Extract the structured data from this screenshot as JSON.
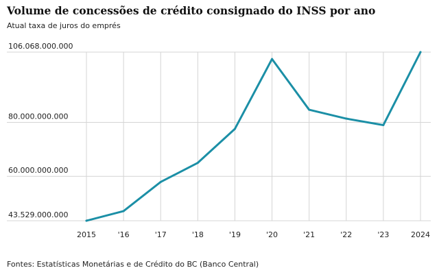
{
  "header": {
    "title": "Volume de concessões de crédito consignado do INSS por ano",
    "subtitle": "Atual taxa de juros do emprés"
  },
  "footer": {
    "source": "Fontes: Estatísticas Monetárias e de Crédito do BC (Banco Central)"
  },
  "colors": {
    "line": "#1b8fa6",
    "grid": "#d4d4d4"
  },
  "chart_data": {
    "type": "line",
    "title": "Volume de concessões de crédito consignado do INSS por ano",
    "subtitle": "Atual taxa de juros do emprés",
    "xlabel": "",
    "ylabel": "",
    "x": [
      2015,
      2016,
      2017,
      2018,
      2019,
      2020,
      2021,
      2022,
      2023,
      2024
    ],
    "x_tick_labels": [
      "2015",
      "'16",
      "'17",
      "'18",
      "'19",
      "'20",
      "'21",
      "'22",
      "'23",
      "2024"
    ],
    "series": [
      {
        "name": "Volume de concessões",
        "values": [
          43529000000,
          47100000000,
          57900000000,
          65000000000,
          77600000000,
          103500000000,
          84700000000,
          81400000000,
          79000000000,
          106068000000
        ]
      }
    ],
    "y_ticks": [
      43529000000,
      60000000000,
      80000000000,
      106068000000
    ],
    "y_tick_labels": [
      "43.529.000.000",
      "60.000.000.000",
      "80.000.000.000",
      "106.068.000.000"
    ],
    "ylim": [
      43529000000,
      106068000000
    ],
    "grid": true,
    "legend": "none"
  }
}
